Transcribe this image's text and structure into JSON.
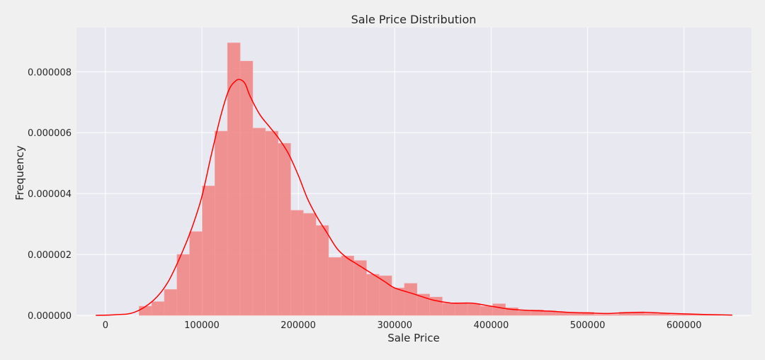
{
  "chart_data": {
    "type": "bar",
    "title": "Sale Price Distribution",
    "xlabel": "Sale Price",
    "ylabel": "Frequency",
    "xlim": [
      -30000,
      670000
    ],
    "ylim": [
      0,
      9.45e-06
    ],
    "xticks": [
      0,
      100000,
      200000,
      300000,
      400000,
      500000,
      600000
    ],
    "xtick_labels": [
      "0",
      "100000",
      "200000",
      "300000",
      "400000",
      "500000",
      "600000"
    ],
    "yticks": [
      0,
      2e-06,
      4e-06,
      6e-06,
      8e-06
    ],
    "ytick_labels": [
      "0.000000",
      "0.000002",
      "0.000004",
      "0.000006",
      "0.000008"
    ],
    "grid": true,
    "colors": {
      "bars": "#f08080",
      "kde": "#ff0000",
      "plot_background": "#e8e8f0",
      "figure_background": "#f0f0f0",
      "grid": "#ffffff"
    },
    "histogram": {
      "bin_width": 13100,
      "bin_starts": [
        34900,
        48000,
        61100,
        74200,
        87300,
        100400,
        113500,
        126600,
        139700,
        152800,
        165900,
        179000,
        192100,
        205200,
        218300,
        231400,
        244500,
        257600,
        270700,
        283800,
        296900,
        310000,
        323100,
        336200,
        349300,
        362400,
        375500,
        388600,
        401700,
        414800,
        427900,
        441000,
        454100,
        467200,
        480300,
        493400,
        506500,
        519600,
        532700,
        545800,
        558900,
        572000,
        585100,
        598200,
        611300,
        624400,
        637500
      ],
      "values": [
        3e-07,
        4.5e-07,
        8.5e-07,
        2e-06,
        2.75e-06,
        4.25e-06,
        6.05e-06,
        8.95e-06,
        8.35e-06,
        6.15e-06,
        6.05e-06,
        5.65e-06,
        3.45e-06,
        3.35e-06,
        2.95e-06,
        1.9e-06,
        1.95e-06,
        1.8e-06,
        1.35e-06,
        1.3e-06,
        9e-07,
        1.05e-06,
        7e-07,
        6e-07,
        4e-07,
        4.2e-07,
        3.8e-07,
        3e-07,
        3.8e-07,
        2.5e-07,
        1.5e-07,
        1.8e-07,
        1.5e-07,
        1e-07,
        8e-08,
        1e-07,
        3e-08,
        3e-08,
        1e-07,
        1e-07,
        6e-08,
        5e-08,
        3e-08,
        3e-08,
        2e-08,
        2e-08,
        0.0
      ]
    },
    "kde": {
      "x": [
        -10000,
        10000,
        30000,
        50000,
        65000,
        80000,
        90000,
        100000,
        110000,
        120000,
        128000,
        135000,
        140000,
        145000,
        150000,
        160000,
        170000,
        180000,
        190000,
        200000,
        210000,
        220000,
        230000,
        240000,
        250000,
        260000,
        270000,
        280000,
        290000,
        300000,
        320000,
        340000,
        360000,
        380000,
        400000,
        420000,
        440000,
        460000,
        480000,
        500000,
        520000,
        540000,
        560000,
        580000,
        600000,
        620000,
        650000
      ],
      "y": [
        0.0,
        2e-08,
        1e-07,
        5e-07,
        1.1e-06,
        2.1e-06,
        2.9e-06,
        3.9e-06,
        5.3e-06,
        6.6e-06,
        7.4e-06,
        7.7e-06,
        7.74e-06,
        7.6e-06,
        7.2e-06,
        6.6e-06,
        6.2e-06,
        5.8e-06,
        5.3e-06,
        4.6e-06,
        3.8e-06,
        3.2e-06,
        2.7e-06,
        2.2e-06,
        1.9e-06,
        1.7e-06,
        1.5e-06,
        1.3e-06,
        1.1e-06,
        9e-07,
        7e-07,
        5e-07,
        4e-07,
        4e-07,
        3e-07,
        2e-07,
        1.6e-07,
        1.4e-07,
        1e-07,
        8e-08,
        6e-08,
        9e-08,
        1e-07,
        7e-08,
        5e-08,
        3e-08,
        1e-08
      ]
    }
  }
}
